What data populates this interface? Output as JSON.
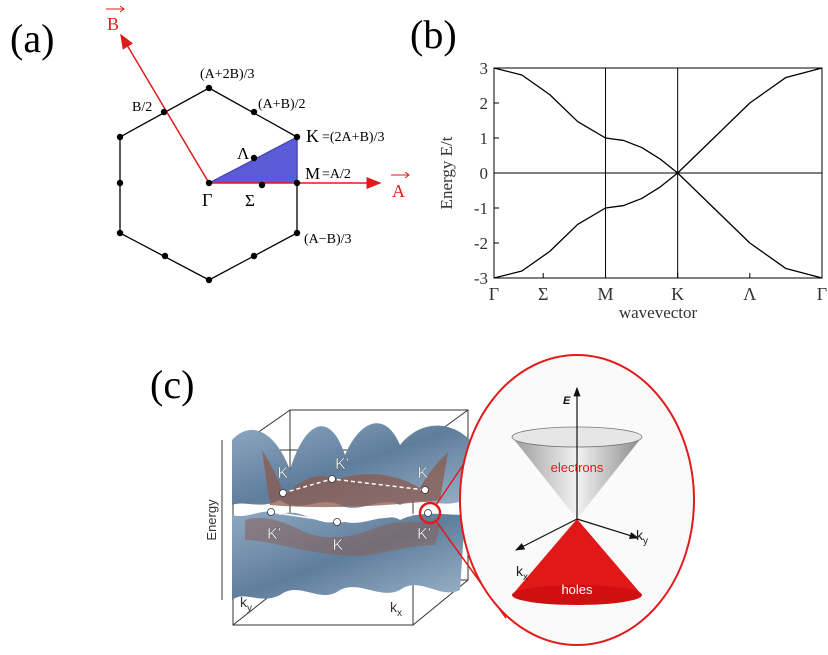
{
  "panel_a": {
    "label": "(a)",
    "vector_b": "B",
    "vector_a": "A",
    "b_half": "B/2",
    "a2b": "(A+2B)/3",
    "ab_half": "(A+B)/2",
    "k_point": "K",
    "k_expr": "=(2A+B)/3",
    "lambda": "Λ",
    "m_point": "M",
    "m_expr": "=A/2",
    "gamma": "Γ",
    "sigma": "Σ",
    "amb": "(A−B)/3"
  },
  "chart_data": {
    "type": "line",
    "label": "(b)",
    "ylabel": "Energy E/t",
    "xlabel": "wavevector",
    "x": [
      0,
      0.085,
      0.17,
      0.255,
      0.34,
      0.395,
      0.45,
      0.505,
      0.56,
      0.67,
      0.78,
      0.89,
      1
    ],
    "series": [
      {
        "color": "#000000",
        "values": [
          3,
          2.8,
          2.24,
          1.47,
          1,
          0.93,
          0.73,
          0.41,
          0,
          1,
          2,
          2.73,
          3
        ]
      },
      {
        "color": "#000000",
        "values": [
          -3,
          -2.8,
          -2.24,
          -1.47,
          -1,
          -0.93,
          -0.73,
          -0.41,
          0,
          -1,
          -2,
          -2.73,
          -3
        ]
      }
    ],
    "xlim": [
      0,
      1
    ],
    "xticks": [
      {
        "value": 0,
        "label": "Γ"
      },
      {
        "value": 0.15,
        "label": "Σ"
      },
      {
        "value": 0.34,
        "label": "M"
      },
      {
        "value": 0.56,
        "label": "K"
      },
      {
        "value": 0.78,
        "label": "Λ"
      },
      {
        "value": 1,
        "label": "Γ"
      }
    ],
    "ylim": [
      -3,
      3
    ],
    "yticks": [
      -3,
      -2,
      -1,
      0,
      1,
      2,
      3
    ]
  },
  "panel_c": {
    "label": "(c)",
    "energy": "Energy",
    "k_labels": [
      "K",
      "K'",
      "K",
      "K'",
      "K",
      "K'"
    ],
    "ky": {
      "base": "k",
      "sub": "y"
    },
    "kx": {
      "base": "k",
      "sub": "x"
    },
    "e_axis": "E",
    "electrons": "electrons",
    "holes": "holes",
    "cone_kx": {
      "base": "k",
      "sub": "x"
    },
    "cone_ky": {
      "base": "k",
      "sub": "y"
    }
  }
}
